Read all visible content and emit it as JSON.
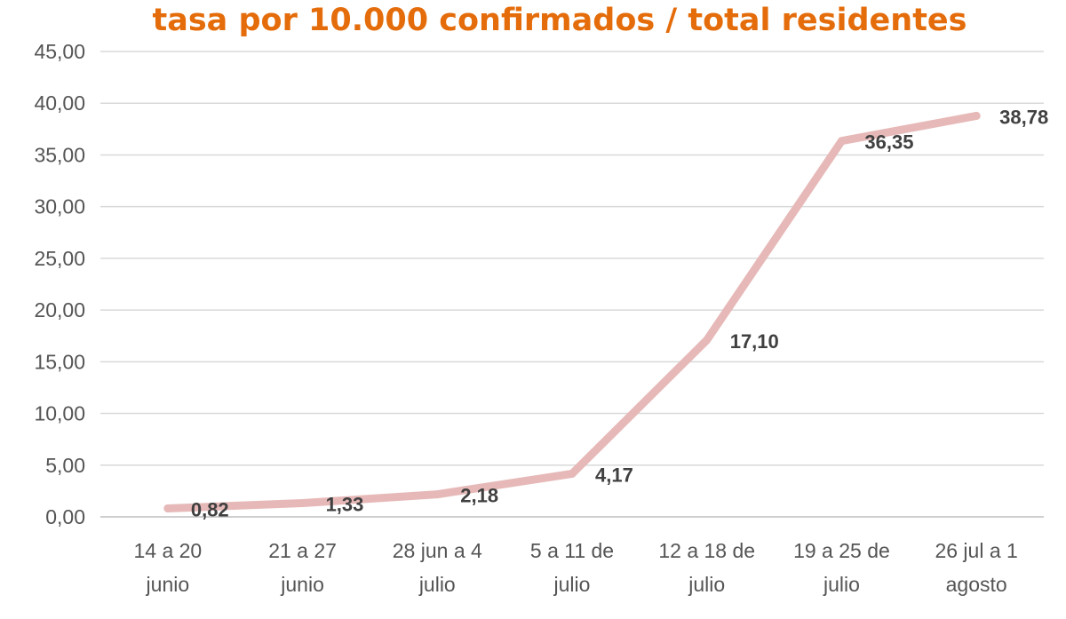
{
  "chart_data": {
    "type": "line",
    "title": "tasa por 10.000 confirmados / total residentes",
    "title_color": "#e46c0a",
    "line_color": "#e6b9b8",
    "categories": [
      [
        "14 a 20",
        "junio"
      ],
      [
        "21 a 27",
        "junio"
      ],
      [
        "28 jun a 4",
        "julio"
      ],
      [
        "5 a 11 de",
        "julio"
      ],
      [
        "12 a 18  de",
        "julio"
      ],
      [
        "19 a 25 de",
        "julio"
      ],
      [
        "26 jul a 1",
        "agosto"
      ]
    ],
    "values": [
      0.82,
      1.33,
      2.18,
      4.17,
      17.1,
      36.35,
      38.78
    ],
    "data_labels": [
      "0,82",
      "1,33",
      "2,18",
      "4,17",
      "17,10",
      "36,35",
      "38,78"
    ],
    "ylim": [
      0,
      45
    ],
    "ytick_labels": [
      "0,00",
      "5,00",
      "10,00",
      "15,00",
      "20,00",
      "25,00",
      "30,00",
      "35,00",
      "40,00",
      "45,00"
    ],
    "grid": true,
    "xlabel": "",
    "ylabel": ""
  }
}
